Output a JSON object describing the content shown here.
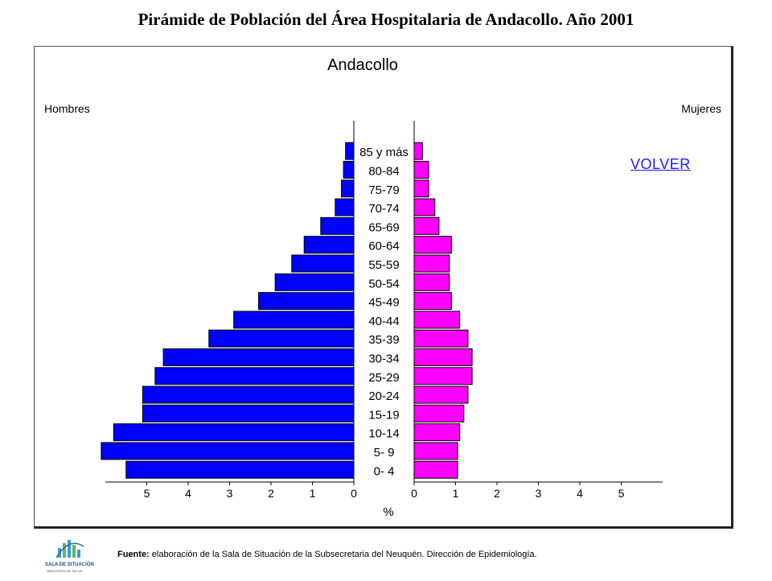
{
  "page": {
    "title": "Pirámide de Población del Área Hospitalaria de Andacollo. Año 2001",
    "volver": "VOLVER",
    "source_label": "Fuente:",
    "source_text": "elaboración de la Sala de Situación de la Subsecretaria del Neuquén. Dirección de Epidemiología.",
    "logo_text_1": "SALA DE SITUACIÓN",
    "logo_text_2": "MINISTERIO DE SALUD"
  },
  "chart_data": {
    "type": "bar",
    "subtype": "population-pyramid",
    "title": "Andacollo",
    "xlabel": "%",
    "left_label": "Hombres",
    "right_label": "Mujeres",
    "categories": [
      "85 y más",
      "80-84",
      "75-79",
      "70-74",
      "65-69",
      "60-64",
      "55-59",
      "50-54",
      "45-49",
      "40-44",
      "35-39",
      "30-34",
      "25-29",
      "20-24",
      "15-19",
      "10-14",
      "5- 9",
      "0- 4"
    ],
    "series": [
      {
        "name": "Hombres",
        "color": "#0000ff",
        "values": [
          0.2,
          0.25,
          0.3,
          0.45,
          0.8,
          1.2,
          1.5,
          1.9,
          2.3,
          2.9,
          3.5,
          4.6,
          4.8,
          5.1,
          5.1,
          5.8,
          6.1,
          5.5
        ]
      },
      {
        "name": "Mujeres",
        "color": "#ff00ff",
        "values": [
          0.2,
          0.35,
          0.35,
          0.5,
          0.6,
          0.9,
          0.85,
          0.85,
          0.9,
          1.1,
          1.3,
          1.4,
          1.4,
          1.3,
          1.2,
          1.1,
          1.05,
          1.05
        ]
      }
    ],
    "x_ticks_left": [
      "5",
      "4",
      "3",
      "2",
      "1",
      "0"
    ],
    "x_ticks_right": [
      "0",
      "1",
      "2",
      "3",
      "4",
      "5"
    ],
    "xlim": [
      0,
      6
    ]
  }
}
